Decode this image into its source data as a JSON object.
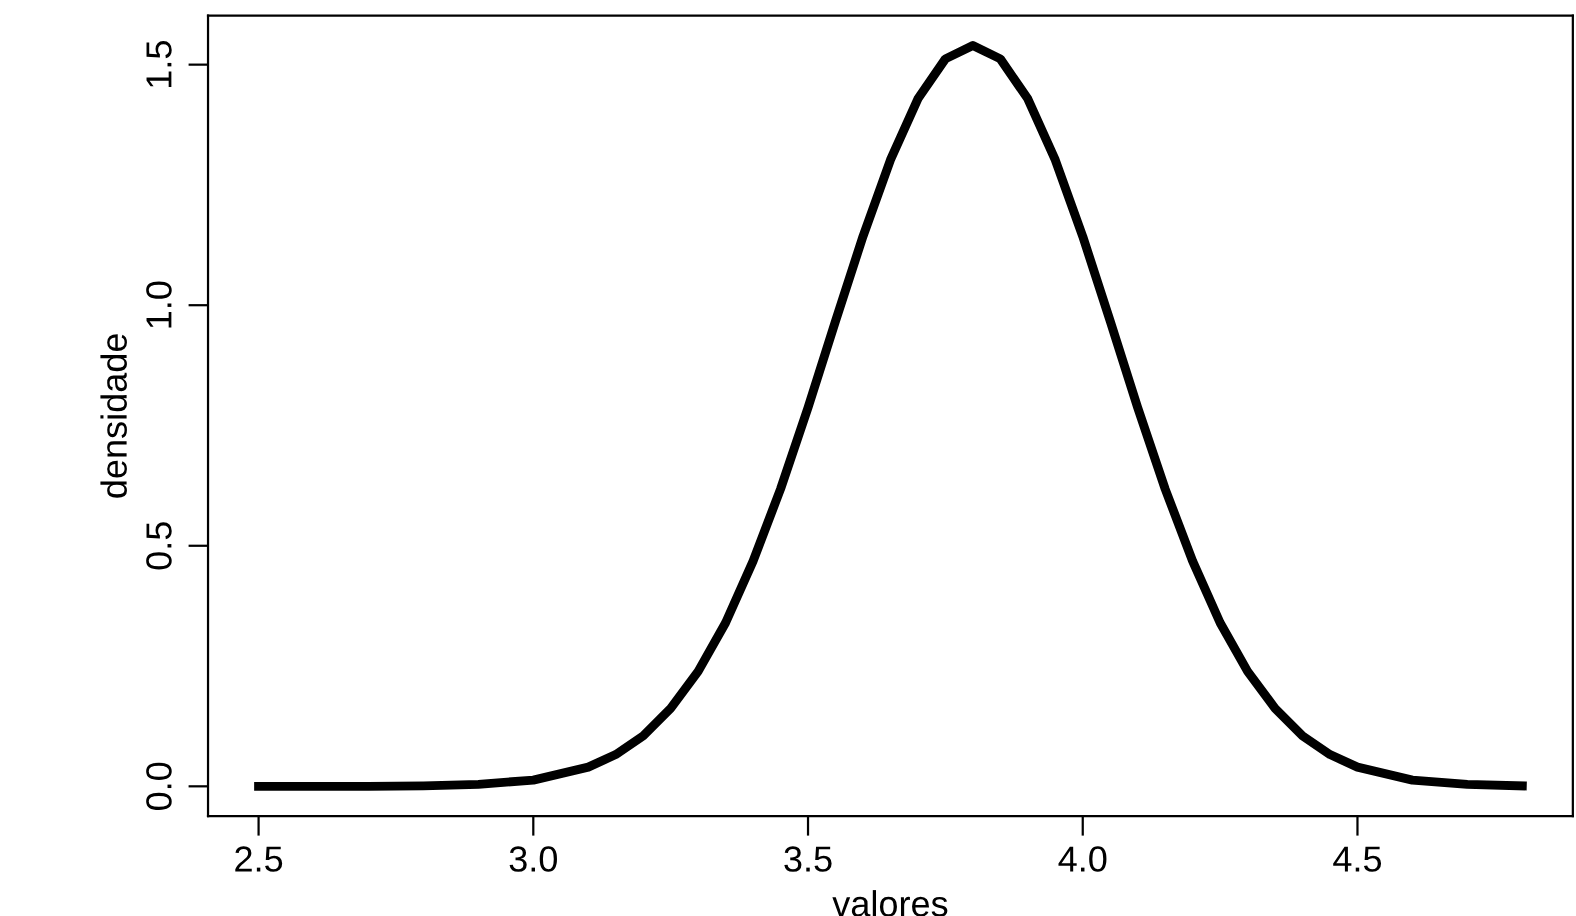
{
  "chart_data": {
    "type": "line",
    "xlabel": "valores",
    "ylabel": "densidade",
    "x": [
      2.5,
      2.7,
      2.8,
      2.9,
      3.0,
      3.1,
      3.15,
      3.2,
      3.25,
      3.3,
      3.35,
      3.4,
      3.45,
      3.5,
      3.55,
      3.6,
      3.65,
      3.7,
      3.75,
      3.8,
      3.85,
      3.9,
      3.95,
      4.0,
      4.05,
      4.1,
      4.15,
      4.2,
      4.25,
      4.3,
      4.35,
      4.4,
      4.45,
      4.5,
      4.6,
      4.7,
      4.8
    ],
    "series": [
      {
        "color": "#000000",
        "values": [
          0.0,
          0.0,
          0.001,
          0.004,
          0.013,
          0.04,
          0.066,
          0.105,
          0.162,
          0.239,
          0.34,
          0.468,
          0.618,
          0.787,
          0.967,
          1.143,
          1.302,
          1.429,
          1.512,
          1.54,
          1.512,
          1.429,
          1.302,
          1.143,
          0.967,
          0.787,
          0.618,
          0.468,
          0.34,
          0.239,
          0.162,
          0.105,
          0.066,
          0.04,
          0.013,
          0.004,
          0.001
        ]
      }
    ],
    "xlim": [
      2.408,
      4.892
    ],
    "ylim": [
      -0.062,
      1.602
    ],
    "xticks": [
      2.5,
      {
        "value": 3,
        "label": "3.0"
      },
      3.5,
      {
        "value": 4,
        "label": "4.0"
      },
      4.5
    ],
    "yticks": [
      {
        "value": 0,
        "label": "0.0"
      },
      0.5,
      {
        "value": 1,
        "label": "1.0"
      },
      1.5
    ],
    "grid": false,
    "legend": false,
    "marker": "none",
    "line_style": "solid"
  }
}
